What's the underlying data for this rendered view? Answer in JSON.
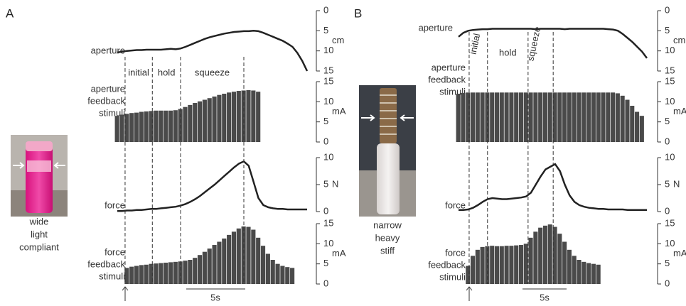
{
  "panels": [
    {
      "label": "A",
      "object_caption": [
        "wide",
        "light",
        "compliant"
      ],
      "phases": [
        "initial",
        "hold",
        "squeeze"
      ],
      "phase_boundaries": [
        1.6,
        7.2,
        13.0,
        26.0
      ],
      "scale_bar": "5s"
    },
    {
      "label": "B",
      "object_caption": [
        "narrow",
        "heavy",
        "stiff"
      ],
      "phases": [
        "initial",
        "hold",
        "squeeze"
      ],
      "phase_boundaries": [
        2.2,
        6.0,
        14.4,
        19.6
      ],
      "scale_bar": "5s"
    }
  ],
  "chart_data": [
    {
      "type": "line",
      "title": [
        "aperture"
      ],
      "y_unit": "cm",
      "color": "#222",
      "ylim": [
        15,
        0
      ],
      "yticks": [
        0,
        5,
        10,
        15
      ],
      "values": [
        10.4,
        10.2,
        10.0,
        9.9,
        9.8,
        9.8,
        9.7,
        9.7,
        9.7,
        9.7,
        9.6,
        9.5,
        9.6,
        9.4,
        9.0,
        8.5,
        8.0,
        7.5,
        7.0,
        6.6,
        6.3,
        6.0,
        5.7,
        5.5,
        5.3,
        5.2,
        5.1,
        5.1,
        5.0,
        5.1,
        5.5,
        6.0,
        6.5,
        7.0,
        7.5,
        8.2,
        9.0,
        10.5,
        12.5,
        15.0
      ]
    },
    {
      "type": "bar",
      "title": [
        "aperture",
        "feedback",
        "stimuli"
      ],
      "y_unit": "mA",
      "color": "#4a4a4a",
      "ylim": [
        0,
        15
      ],
      "yticks": [
        0,
        5,
        10,
        15
      ],
      "values": [
        6.5,
        6.8,
        7.0,
        7.2,
        7.3,
        7.5,
        7.6,
        7.7,
        7.8,
        7.8,
        7.8,
        7.8,
        7.9,
        8.2,
        8.7,
        9.2,
        9.7,
        10.1,
        10.5,
        10.9,
        11.3,
        11.7,
        12.0,
        12.3,
        12.5,
        12.7,
        12.8,
        12.9,
        12.8,
        12.5,
        null,
        null,
        null,
        null,
        null,
        null,
        null,
        null,
        null,
        null
      ]
    },
    {
      "type": "line",
      "title": [
        "force"
      ],
      "y_unit": "N",
      "color": "#222",
      "ylim": [
        0,
        10
      ],
      "yticks": [
        0,
        5,
        10
      ],
      "values": [
        0.1,
        0.1,
        0.2,
        0.2,
        0.3,
        0.3,
        0.4,
        0.5,
        0.5,
        0.6,
        0.7,
        0.8,
        0.9,
        1.1,
        1.4,
        1.8,
        2.3,
        2.9,
        3.6,
        4.3,
        5.0,
        5.8,
        6.6,
        7.4,
        8.2,
        8.9,
        9.3,
        8.5,
        5.5,
        2.5,
        1.2,
        0.8,
        0.6,
        0.5,
        0.5,
        0.4,
        0.4,
        0.4,
        0.4,
        0.4
      ]
    },
    {
      "type": "bar",
      "title": [
        "force",
        "feedback",
        "stimuli"
      ],
      "y_unit": "mA",
      "color": "#4a4a4a",
      "ylim": [
        0,
        15
      ],
      "yticks": [
        0,
        5,
        10,
        15
      ],
      "values": [
        null,
        null,
        4.0,
        4.3,
        4.5,
        4.7,
        4.8,
        5.0,
        5.1,
        5.2,
        5.3,
        5.4,
        5.5,
        5.6,
        5.8,
        6.0,
        6.5,
        7.2,
        8.0,
        8.8,
        9.7,
        10.5,
        11.3,
        12.2,
        13.0,
        13.8,
        14.3,
        14.2,
        13.5,
        11.5,
        9.5,
        7.5,
        6.0,
        5.0,
        4.5,
        4.2,
        4.0,
        null,
        null,
        null
      ]
    },
    {
      "type": "line",
      "title": [
        "aperture"
      ],
      "y_unit": "cm",
      "color": "#222",
      "ylim": [
        15,
        0
      ],
      "yticks": [
        0,
        5,
        10,
        15
      ],
      "values": [
        6.5,
        5.5,
        5.0,
        4.8,
        4.7,
        4.6,
        4.6,
        4.5,
        4.5,
        4.5,
        4.5,
        4.5,
        4.5,
        4.5,
        4.5,
        4.5,
        4.6,
        4.5,
        4.5,
        4.5,
        4.5,
        4.5,
        4.6,
        4.5,
        4.5,
        4.5,
        4.5,
        4.5,
        4.5,
        4.5,
        4.5,
        4.6,
        4.7,
        5.0,
        5.8,
        6.8,
        7.8,
        9.0,
        10.2,
        11.8
      ]
    },
    {
      "type": "bar",
      "title": [
        "aperture",
        "feedback",
        "stimuli"
      ],
      "y_unit": "mA",
      "color": "#4a4a4a",
      "ylim": [
        0,
        15
      ],
      "yticks": [
        0,
        5,
        10,
        15
      ],
      "values": [
        12.0,
        12.2,
        12.3,
        12.3,
        12.3,
        12.3,
        12.3,
        12.3,
        12.3,
        12.3,
        12.3,
        12.3,
        12.3,
        12.3,
        12.3,
        12.3,
        12.3,
        12.3,
        12.3,
        12.3,
        12.3,
        12.3,
        12.3,
        12.3,
        12.3,
        12.3,
        12.3,
        12.3,
        12.3,
        12.3,
        12.3,
        12.3,
        12.3,
        12.1,
        11.5,
        10.5,
        9.0,
        7.5,
        6.5,
        null
      ]
    },
    {
      "type": "line",
      "title": [
        "force"
      ],
      "y_unit": "N",
      "color": "#222",
      "ylim": [
        0,
        10
      ],
      "yticks": [
        0,
        5,
        10
      ],
      "values": [
        0.3,
        0.3,
        0.4,
        0.7,
        1.2,
        1.8,
        2.3,
        2.5,
        2.4,
        2.3,
        2.3,
        2.4,
        2.5,
        2.6,
        2.8,
        3.5,
        5.0,
        6.5,
        7.8,
        8.3,
        8.8,
        7.5,
        5.0,
        3.0,
        1.8,
        1.2,
        0.9,
        0.7,
        0.6,
        0.5,
        0.5,
        0.4,
        0.4,
        0.4,
        0.4,
        0.3,
        0.3,
        0.3,
        0.3,
        0.3
      ]
    },
    {
      "type": "bar",
      "title": [
        "force",
        "feedback",
        "stimuli"
      ],
      "y_unit": "mA",
      "color": "#4a4a4a",
      "ylim": [
        0,
        15
      ],
      "yticks": [
        0,
        5,
        10,
        15
      ],
      "values": [
        null,
        null,
        4.5,
        7.0,
        8.5,
        9.2,
        9.4,
        9.5,
        9.4,
        9.4,
        9.5,
        9.5,
        9.6,
        9.7,
        10.0,
        11.5,
        13.0,
        14.0,
        14.5,
        14.8,
        14.2,
        12.5,
        10.5,
        8.5,
        7.0,
        6.0,
        5.5,
        5.2,
        5.0,
        4.8,
        null,
        null,
        null,
        null,
        null,
        null,
        null,
        null,
        null,
        null
      ]
    }
  ]
}
